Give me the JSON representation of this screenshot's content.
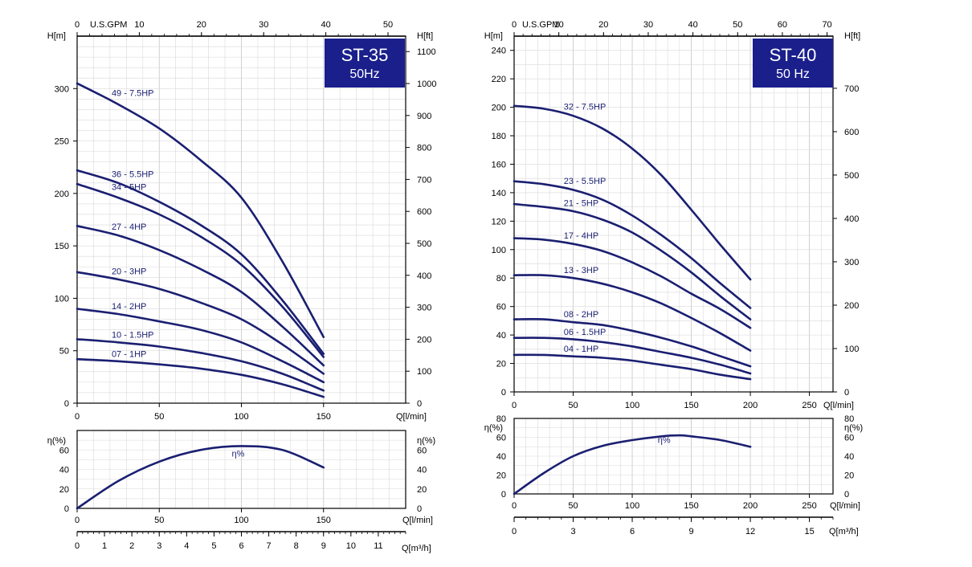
{
  "chart_data": [
    {
      "type": "line",
      "model": "ST-35",
      "frequency": "50Hz",
      "axes": {
        "x_bottom": {
          "label": "Q[l/min]",
          "ticks": [
            0,
            50,
            100,
            150
          ],
          "range": [
            0,
            200
          ]
        },
        "x_top": {
          "label": "U.S.GPM",
          "ticks": [
            0,
            10,
            20,
            30,
            40,
            50
          ]
        },
        "y_left": {
          "label": "H[m]",
          "ticks": [
            0,
            50,
            100,
            150,
            200,
            250,
            300
          ],
          "range": [
            0,
            350
          ]
        },
        "y_right": {
          "label": "H[ft]",
          "ticks": [
            0,
            100,
            200,
            300,
            400,
            500,
            600,
            700,
            800,
            900,
            1000,
            1100
          ]
        },
        "x_m3h": {
          "label": "Q[m³/h]",
          "ticks": [
            0,
            1,
            2,
            3,
            4,
            5,
            6,
            7,
            8,
            9,
            10,
            11
          ]
        }
      },
      "series": [
        {
          "name": "49 - 7.5HP",
          "x": [
            0,
            25,
            50,
            75,
            100,
            125,
            150
          ],
          "y": [
            305,
            285,
            262,
            232,
            196,
            135,
            63
          ]
        },
        {
          "name": "36 - 5.5HP",
          "x": [
            0,
            25,
            50,
            75,
            100,
            125,
            150
          ],
          "y": [
            222,
            210,
            192,
            170,
            142,
            98,
            47
          ]
        },
        {
          "name": "34 - 5HP",
          "x": [
            0,
            25,
            50,
            75,
            100,
            125,
            150
          ],
          "y": [
            209,
            196,
            180,
            159,
            132,
            92,
            44
          ]
        },
        {
          "name": "27 - 4HP",
          "x": [
            0,
            25,
            50,
            75,
            100,
            125,
            150
          ],
          "y": [
            169,
            160,
            146,
            128,
            106,
            73,
            36
          ]
        },
        {
          "name": "20 - 3HP",
          "x": [
            0,
            25,
            50,
            75,
            100,
            125,
            150
          ],
          "y": [
            125,
            118,
            109,
            96,
            80,
            56,
            28
          ]
        },
        {
          "name": "14 - 2HP",
          "x": [
            0,
            25,
            50,
            75,
            100,
            125,
            150
          ],
          "y": [
            90,
            85,
            78,
            70,
            58,
            40,
            20
          ]
        },
        {
          "name": "10 - 1.5HP",
          "x": [
            0,
            25,
            50,
            75,
            100,
            125,
            150
          ],
          "y": [
            61,
            58,
            54,
            48,
            40,
            28,
            12
          ]
        },
        {
          "name": "07 - 1HP",
          "x": [
            0,
            25,
            50,
            75,
            100,
            125,
            150
          ],
          "y": [
            42,
            40,
            37,
            33,
            27,
            18,
            6
          ]
        }
      ],
      "efficiency": {
        "label": "η%",
        "y_label": "η(%)",
        "y_ticks": [
          0,
          20,
          40,
          60
        ],
        "y_range": [
          0,
          80
        ],
        "x": [
          0,
          25,
          50,
          75,
          100,
          125,
          150
        ],
        "y": [
          0,
          28,
          48,
          60,
          64,
          60,
          42
        ]
      }
    },
    {
      "type": "line",
      "model": "ST-40",
      "frequency": "50 Hz",
      "axes": {
        "x_bottom": {
          "label": "Q[l/min]",
          "ticks": [
            0,
            50,
            100,
            150,
            200,
            250
          ],
          "range": [
            0,
            270
          ]
        },
        "x_top": {
          "label": "U.S.GPM",
          "ticks": [
            0,
            10,
            20,
            30,
            40,
            50,
            60,
            70
          ]
        },
        "y_left": {
          "label": "H[m]",
          "ticks": [
            0,
            20,
            40,
            60,
            80,
            100,
            120,
            140,
            160,
            180,
            200,
            220,
            240
          ],
          "range": [
            0,
            250
          ]
        },
        "y_right": {
          "label": "H[ft]",
          "ticks": [
            0,
            100,
            200,
            300,
            400,
            500,
            600,
            700
          ]
        },
        "x_m3h": {
          "label": "Q[m³/h]",
          "ticks": [
            0,
            3,
            6,
            9,
            12,
            15
          ]
        }
      },
      "series": [
        {
          "name": "32 - 7.5HP",
          "x": [
            0,
            25,
            50,
            75,
            100,
            125,
            150,
            175,
            200
          ],
          "y": [
            201,
            199,
            194,
            185,
            171,
            152,
            128,
            103,
            79
          ]
        },
        {
          "name": "23 - 5.5HP",
          "x": [
            0,
            25,
            50,
            75,
            100,
            125,
            150,
            175,
            200
          ],
          "y": [
            148,
            146,
            142,
            135,
            124,
            110,
            94,
            76,
            59
          ]
        },
        {
          "name": "21 - 5HP",
          "x": [
            0,
            25,
            50,
            75,
            100,
            125,
            150,
            175,
            200
          ],
          "y": [
            132,
            130,
            127,
            121,
            112,
            99,
            84,
            67,
            51
          ]
        },
        {
          "name": "17 - 4HP",
          "x": [
            0,
            25,
            50,
            75,
            100,
            125,
            150,
            175,
            200
          ],
          "y": [
            108,
            107,
            104,
            99,
            91,
            81,
            69,
            58,
            45
          ]
        },
        {
          "name": "13 - 3HP",
          "x": [
            0,
            25,
            50,
            75,
            100,
            125,
            150,
            175,
            200
          ],
          "y": [
            82,
            82,
            80,
            76,
            70,
            62,
            52,
            41,
            29
          ]
        },
        {
          "name": "08 - 2HP",
          "x": [
            0,
            25,
            50,
            75,
            100,
            125,
            150,
            175,
            200
          ],
          "y": [
            51,
            51,
            49,
            47,
            43,
            38,
            32,
            25,
            18
          ]
        },
        {
          "name": "06 - 1.5HP",
          "x": [
            0,
            25,
            50,
            75,
            100,
            125,
            150,
            175,
            200
          ],
          "y": [
            38,
            38,
            37,
            35,
            32,
            28,
            24,
            19,
            13
          ]
        },
        {
          "name": "04 - 1HP",
          "x": [
            0,
            25,
            50,
            75,
            100,
            125,
            150,
            175,
            200
          ],
          "y": [
            26,
            26,
            25,
            24,
            22,
            19,
            16,
            12,
            9
          ]
        }
      ],
      "efficiency": {
        "label": "η%",
        "y_label": "η(%)",
        "y_ticks": [
          0,
          20,
          40,
          60,
          80
        ],
        "y_range": [
          0,
          80
        ],
        "x": [
          0,
          25,
          50,
          75,
          100,
          125,
          140,
          150,
          175,
          200
        ],
        "y": [
          0,
          22,
          40,
          51,
          57,
          61,
          62,
          61,
          57,
          50
        ]
      }
    }
  ],
  "ui": {
    "left_badge": {
      "model": "ST-35",
      "freq": "50Hz"
    },
    "right_badge": {
      "model": "ST-40",
      "freq": "50 Hz"
    }
  }
}
